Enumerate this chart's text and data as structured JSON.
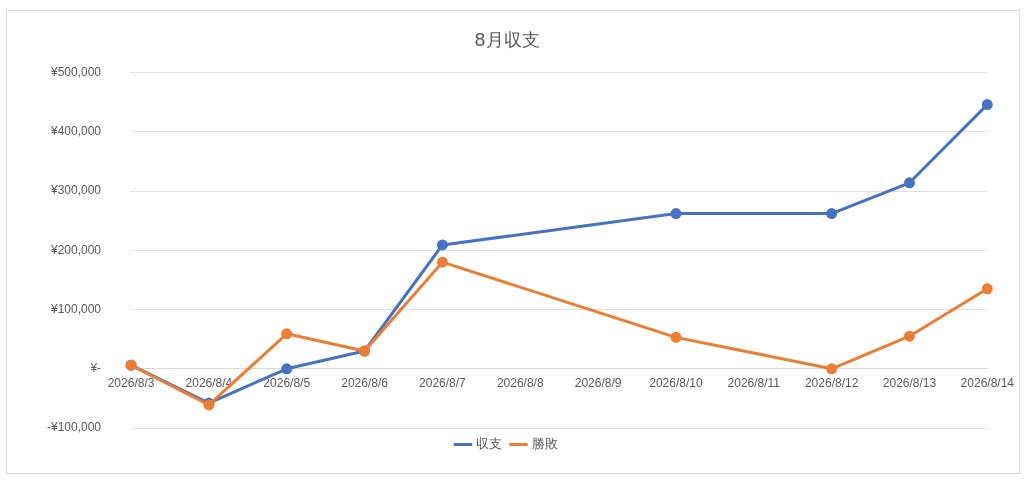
{
  "chart_data": {
    "type": "line",
    "title": "8月収支",
    "categories": [
      "2026/8/3",
      "2026/8/4",
      "2026/8/5",
      "2026/8/6",
      "2026/8/7",
      "2026/8/8",
      "2026/8/9",
      "2026/8/10",
      "2026/8/11",
      "2026/8/12",
      "2026/8/13",
      "2026/8/14"
    ],
    "series": [
      {
        "name": "収支",
        "color": "#4472c4",
        "values": [
          6000,
          -58000,
          0,
          30000,
          209000,
          null,
          null,
          262000,
          null,
          262000,
          314000,
          446000
        ]
      },
      {
        "name": "勝敗",
        "color": "#ed7d31",
        "values": [
          6000,
          -61000,
          59000,
          30000,
          180000,
          null,
          null,
          53000,
          null,
          0,
          55000,
          135000
        ]
      }
    ],
    "ylim": [
      -100000,
      500000
    ],
    "yticks": [
      {
        "value": -100000,
        "label": "-¥100,000"
      },
      {
        "value": 0,
        "label": "¥-"
      },
      {
        "value": 100000,
        "label": "¥100,000"
      },
      {
        "value": 200000,
        "label": "¥200,000"
      },
      {
        "value": 300000,
        "label": "¥300,000"
      },
      {
        "value": 400000,
        "label": "¥400,000"
      },
      {
        "value": 500000,
        "label": "¥500,000"
      }
    ],
    "grid": "y",
    "legend": "bottom",
    "marker": "circle",
    "line_style": "solid"
  }
}
